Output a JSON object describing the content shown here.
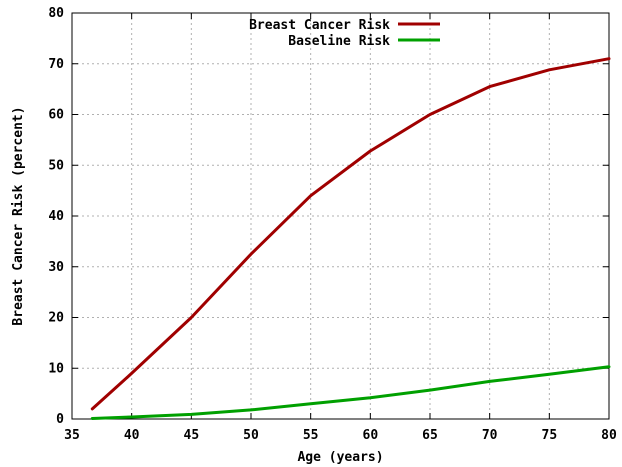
{
  "chart_data": {
    "type": "line",
    "title": "",
    "xlabel": "Age (years)",
    "ylabel": "Breast Cancer Risk (percent)",
    "xlim": [
      35,
      80
    ],
    "ylim": [
      0,
      80
    ],
    "xticks": [
      35,
      40,
      45,
      50,
      55,
      60,
      65,
      70,
      75,
      80
    ],
    "yticks": [
      0,
      10,
      20,
      30,
      40,
      50,
      60,
      70,
      80
    ],
    "grid": true,
    "legend_position": "top-right",
    "series": [
      {
        "name": "Breast Cancer Risk",
        "color": "#a00000",
        "x": [
          36.7,
          40,
          45,
          50,
          55,
          60,
          65,
          70,
          75,
          80
        ],
        "y": [
          2,
          9,
          20,
          32.5,
          44,
          52.8,
          60,
          65.5,
          68.8,
          71
        ]
      },
      {
        "name": "Baseline Risk",
        "color": "#00a000",
        "x": [
          36.7,
          40,
          45,
          50,
          55,
          60,
          65,
          70,
          75,
          80
        ],
        "y": [
          0.1,
          0.4,
          0.9,
          1.8,
          3,
          4.2,
          5.7,
          7.4,
          8.8,
          10.3
        ]
      }
    ]
  }
}
